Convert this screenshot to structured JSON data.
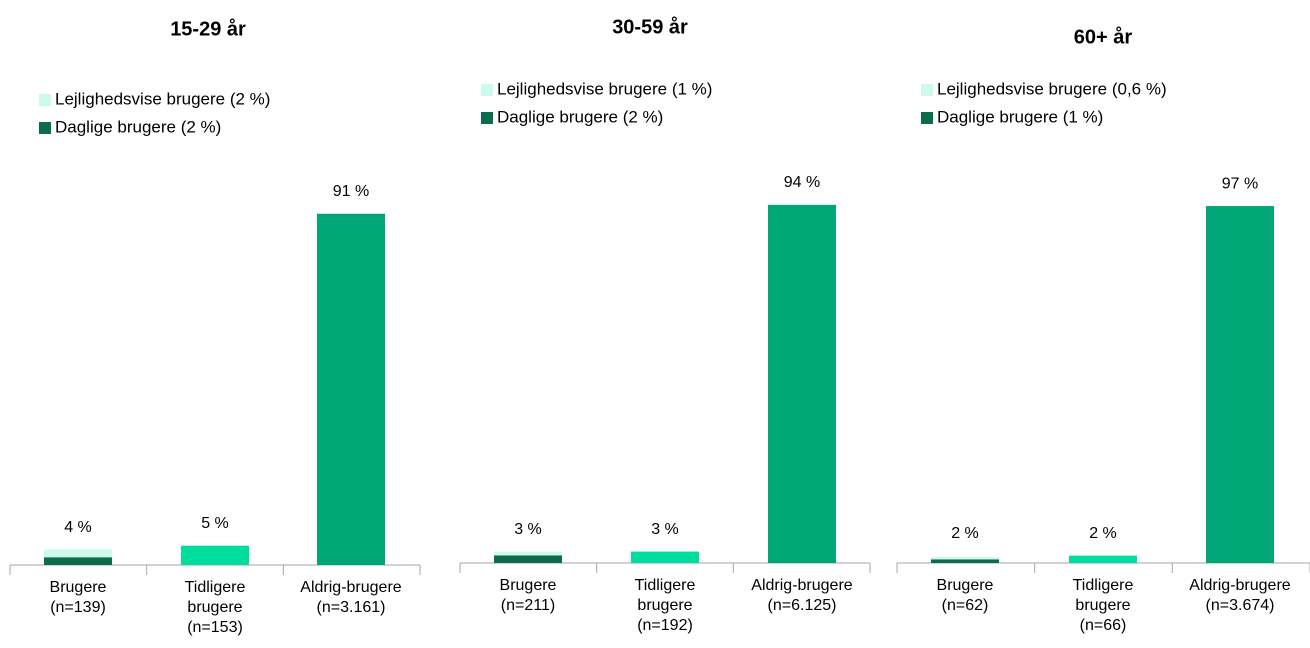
{
  "chart_data": [
    {
      "type": "stacked-bar",
      "title": "15-29 år",
      "ylim": [
        0,
        100
      ],
      "categories": [
        [
          "Brugere",
          "(n=139)"
        ],
        [
          "Tidligere",
          "brugere",
          "(n=153)"
        ],
        [
          "Aldrig-brugere",
          "(n=3.161)"
        ]
      ],
      "series": [
        {
          "name": "Lejlighedsvise brugere (2 %)",
          "color": "#ccfaec",
          "values": [
            2,
            null,
            null
          ]
        },
        {
          "name": "Daglige brugere (2 %)",
          "color": "#0b6b4c",
          "values": [
            2,
            null,
            null
          ]
        },
        {
          "color": "#00dd9f",
          "values": [
            null,
            5,
            null
          ]
        },
        {
          "color": "#00a676",
          "values": [
            null,
            null,
            91
          ]
        }
      ],
      "values": [
        4,
        5,
        91
      ],
      "value_labels": [
        "4 %",
        "5 %",
        "91 %"
      ]
    },
    {
      "type": "stacked-bar",
      "title": "30-59 år",
      "ylim": [
        0,
        100
      ],
      "categories": [
        [
          "Brugere",
          "(n=211)"
        ],
        [
          "Tidligere",
          "brugere",
          "(n=192)"
        ],
        [
          "Aldrig-brugere",
          "(n=6.125)"
        ]
      ],
      "series": [
        {
          "name": "Lejlighedsvise brugere (1 %)",
          "color": "#ccfaec",
          "values": [
            1,
            null,
            null
          ]
        },
        {
          "name": "Daglige brugere (2  %)",
          "color": "#0b6b4c",
          "values": [
            2,
            null,
            null
          ]
        },
        {
          "color": "#00dd9f",
          "values": [
            null,
            3,
            null
          ]
        },
        {
          "color": "#00a676",
          "values": [
            null,
            null,
            94
          ]
        }
      ],
      "values": [
        3,
        3,
        94
      ],
      "value_labels": [
        "3 %",
        "3 %",
        "94 %"
      ]
    },
    {
      "type": "stacked-bar",
      "title": "60+ år",
      "ylim": [
        0,
        100
      ],
      "categories": [
        [
          "Brugere",
          "(n=62)"
        ],
        [
          "Tidligere",
          "brugere",
          "(n=66)"
        ],
        [
          "Aldrig-brugere",
          "(n=3.674)"
        ]
      ],
      "series": [
        {
          "name": "Lejlighedsvise brugere (0,6 %)",
          "color": "#ccfaec",
          "values": [
            0.6,
            null,
            null
          ]
        },
        {
          "name": "Daglige brugere (1 %)",
          "color": "#0b6b4c",
          "values": [
            1,
            null,
            null
          ]
        },
        {
          "color": "#00dd9f",
          "values": [
            null,
            2,
            null
          ]
        },
        {
          "color": "#00a676",
          "values": [
            null,
            null,
            97
          ]
        }
      ],
      "values": [
        2,
        2,
        97
      ],
      "value_labels": [
        "2 %",
        "2 %",
        "97 %"
      ]
    }
  ]
}
